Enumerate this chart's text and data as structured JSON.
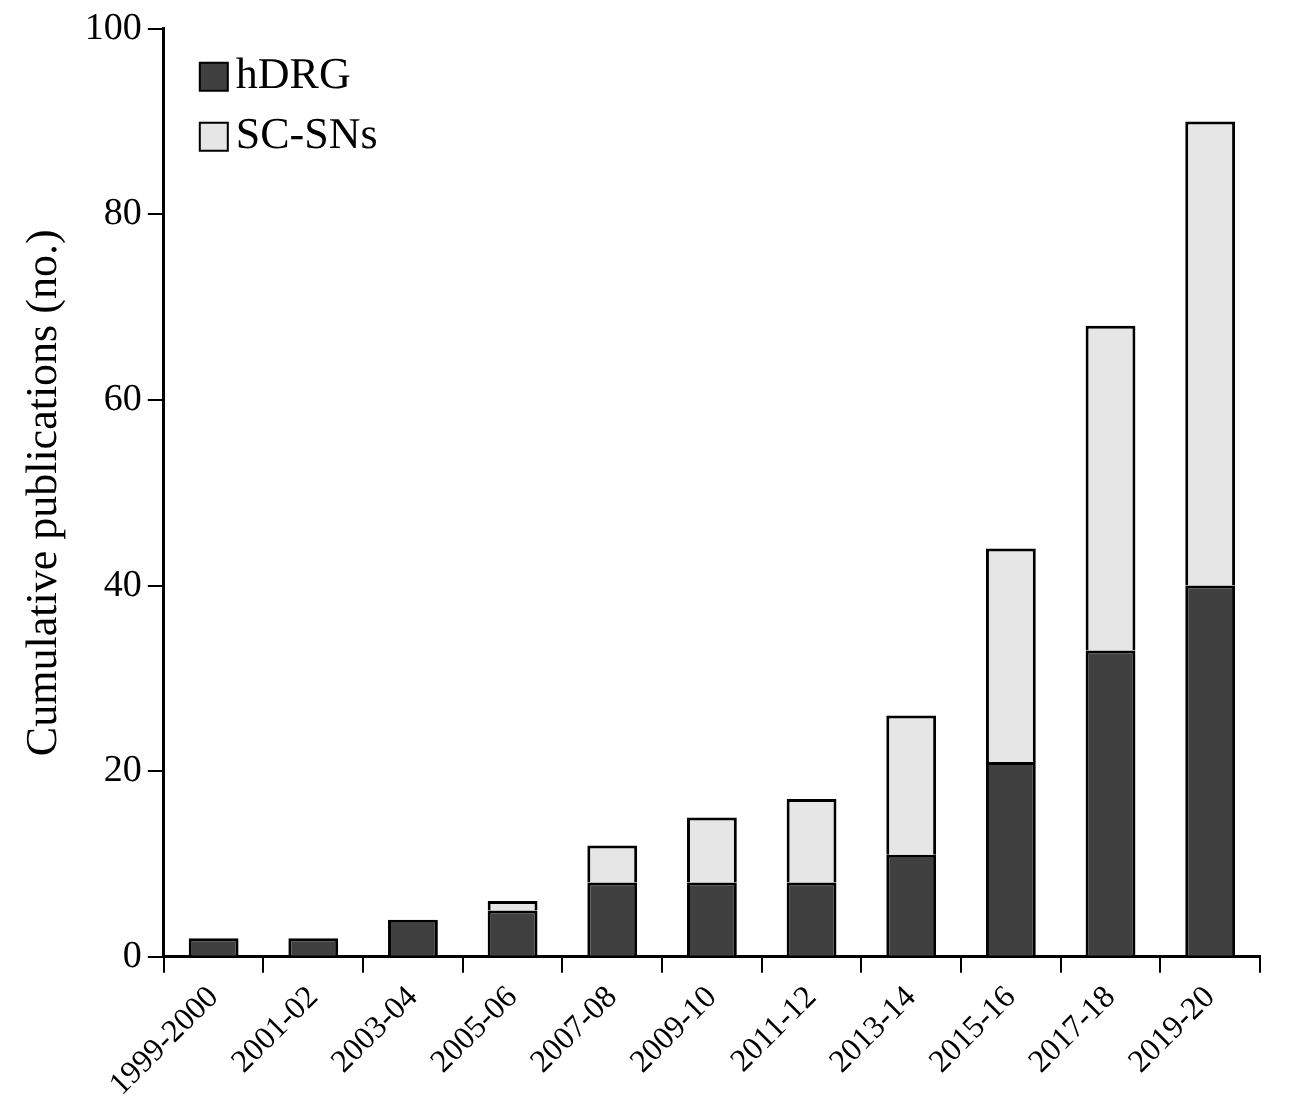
{
  "chart_data": {
    "type": "bar",
    "ylabel": "Cumulative publications (no.)",
    "categories": [
      "1999-2000",
      "2001-02",
      "2003-04",
      "2005-06",
      "2007-08",
      "2009-10",
      "2011-12",
      "2013-14",
      "2015-16",
      "2017-18",
      "2019-20"
    ],
    "series": [
      {
        "name": "hDRG",
        "color": "#404040",
        "values": [
          2,
          2,
          4,
          5,
          8,
          8,
          8,
          11,
          21,
          33,
          40
        ]
      },
      {
        "name": "SC-SNs",
        "color": "#e6e6e6",
        "values": [
          0,
          0,
          0,
          1,
          4,
          7,
          9,
          15,
          23,
          35,
          50
        ]
      }
    ],
    "stacked": true,
    "ylim": [
      0,
      100
    ],
    "yticks": [
      0,
      20,
      40,
      60,
      80,
      100
    ],
    "grid": false,
    "legend": "top left"
  }
}
